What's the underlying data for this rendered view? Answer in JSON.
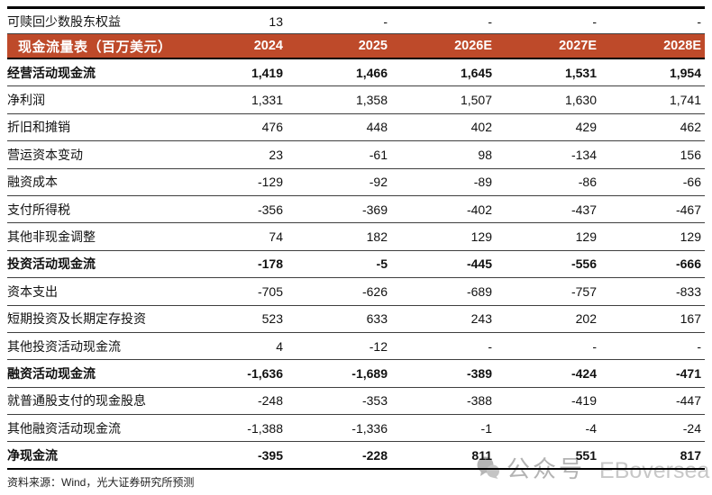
{
  "chart_data": {
    "type": "table",
    "title": "现金流量表（百万美元）",
    "columns": [
      "2024",
      "2025",
      "2026E",
      "2027E",
      "2028E"
    ],
    "pre_header_row": {
      "label": "可赎回少数股东权益",
      "values": [
        "13",
        "-",
        "-",
        "-",
        "-"
      ]
    },
    "rows": [
      {
        "label": "经营活动现金流",
        "values": [
          "1,419",
          "1,466",
          "1,645",
          "1,531",
          "1,954"
        ],
        "bold": true
      },
      {
        "label": "净利润",
        "values": [
          "1,331",
          "1,358",
          "1,507",
          "1,630",
          "1,741"
        ],
        "bold": false
      },
      {
        "label": "折旧和摊销",
        "values": [
          "476",
          "448",
          "402",
          "429",
          "462"
        ],
        "bold": false
      },
      {
        "label": "营运资本变动",
        "values": [
          "23",
          "-61",
          "98",
          "-134",
          "156"
        ],
        "bold": false
      },
      {
        "label": "融资成本",
        "values": [
          "-129",
          "-92",
          "-89",
          "-86",
          "-66"
        ],
        "bold": false
      },
      {
        "label": "支付所得税",
        "values": [
          "-356",
          "-369",
          "-402",
          "-437",
          "-467"
        ],
        "bold": false
      },
      {
        "label": "其他非现金调整",
        "values": [
          "74",
          "182",
          "129",
          "129",
          "129"
        ],
        "bold": false
      },
      {
        "label": "投资活动现金流",
        "values": [
          "-178",
          "-5",
          "-445",
          "-556",
          "-666"
        ],
        "bold": true
      },
      {
        "label": "资本支出",
        "values": [
          "-705",
          "-626",
          "-689",
          "-757",
          "-833"
        ],
        "bold": false
      },
      {
        "label": "短期投资及长期定存投资",
        "values": [
          "523",
          "633",
          "243",
          "202",
          "167"
        ],
        "bold": false
      },
      {
        "label": "其他投资活动现金流",
        "values": [
          "4",
          "-12",
          "-",
          "-",
          "-"
        ],
        "bold": false
      },
      {
        "label": "融资活动现金流",
        "values": [
          "-1,636",
          "-1,689",
          "-389",
          "-424",
          "-471"
        ],
        "bold": true
      },
      {
        "label": "就普通股支付的现金股息",
        "values": [
          "-248",
          "-353",
          "-388",
          "-419",
          "-447"
        ],
        "bold": false
      },
      {
        "label": "其他融资活动现金流",
        "values": [
          "-1,388",
          "-1,336",
          "-1",
          "-4",
          "-24"
        ],
        "bold": false
      },
      {
        "label": "净现金流",
        "values": [
          "-395",
          "-228",
          "811",
          "551",
          "817"
        ],
        "bold": true
      }
    ],
    "source_note": "资料来源：Wind，光大证券研究所预测"
  },
  "watermark": {
    "icon": "wechat-bubbles-icon",
    "label_cn": "公众号",
    "label_en": "EBoversea"
  },
  "colors": {
    "header_bg": "#BE4A2A",
    "header_text": "#FFFFFF"
  }
}
